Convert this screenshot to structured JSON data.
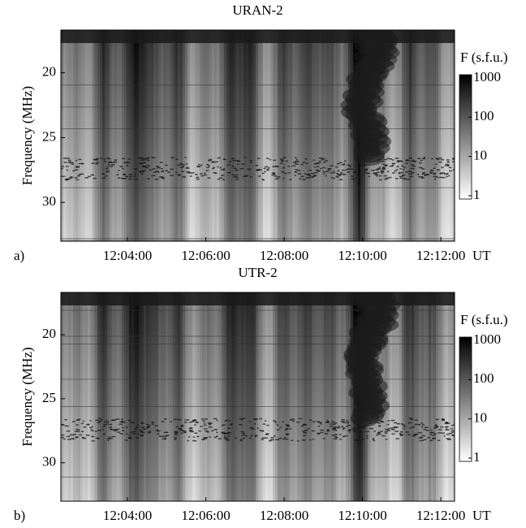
{
  "chart_data": [
    {
      "type": "heatmap",
      "title": "URAN-2",
      "panel_label": "a)",
      "y_label": "Frequency (MHz)",
      "x_label": "UT",
      "xlim": [
        2.3,
        12.35
      ],
      "xticks": [
        {
          "value": 4,
          "label": "12:04:00"
        },
        {
          "value": 6,
          "label": "12:06:00"
        },
        {
          "value": 8,
          "label": "12:08:00"
        },
        {
          "value": 10,
          "label": "12:10:00"
        },
        {
          "value": 12,
          "label": "12:12:00"
        }
      ],
      "ylim": [
        33,
        16.7
      ],
      "yticks": [
        20,
        25,
        30
      ],
      "colorbar": {
        "label": "F (s.f.u.)",
        "lim": [
          1,
          1000
        ],
        "ticks": [
          1,
          10,
          100,
          1000
        ],
        "log": true,
        "colors": [
          "#ffffff",
          "#000000"
        ]
      }
    },
    {
      "type": "heatmap",
      "title": "UTR-2",
      "panel_label": "b)",
      "y_label": "Frequency (MHz)",
      "x_label": "UT",
      "xlim": [
        2.3,
        12.35
      ],
      "xticks": [
        {
          "value": 4,
          "label": "12:04:00"
        },
        {
          "value": 6,
          "label": "12:06:00"
        },
        {
          "value": 8,
          "label": "12:08:00"
        },
        {
          "value": 10,
          "label": "12:10:00"
        },
        {
          "value": 12,
          "label": "12:12:00"
        }
      ],
      "ylim": [
        33,
        16.7
      ],
      "yticks": [
        20,
        25,
        30
      ],
      "colorbar": {
        "label": "F (s.f.u.)",
        "lim": [
          1,
          1000
        ],
        "ticks": [
          1,
          10,
          100,
          1000
        ],
        "log": true,
        "colors": [
          "#ffffff",
          "#000000"
        ]
      }
    }
  ]
}
